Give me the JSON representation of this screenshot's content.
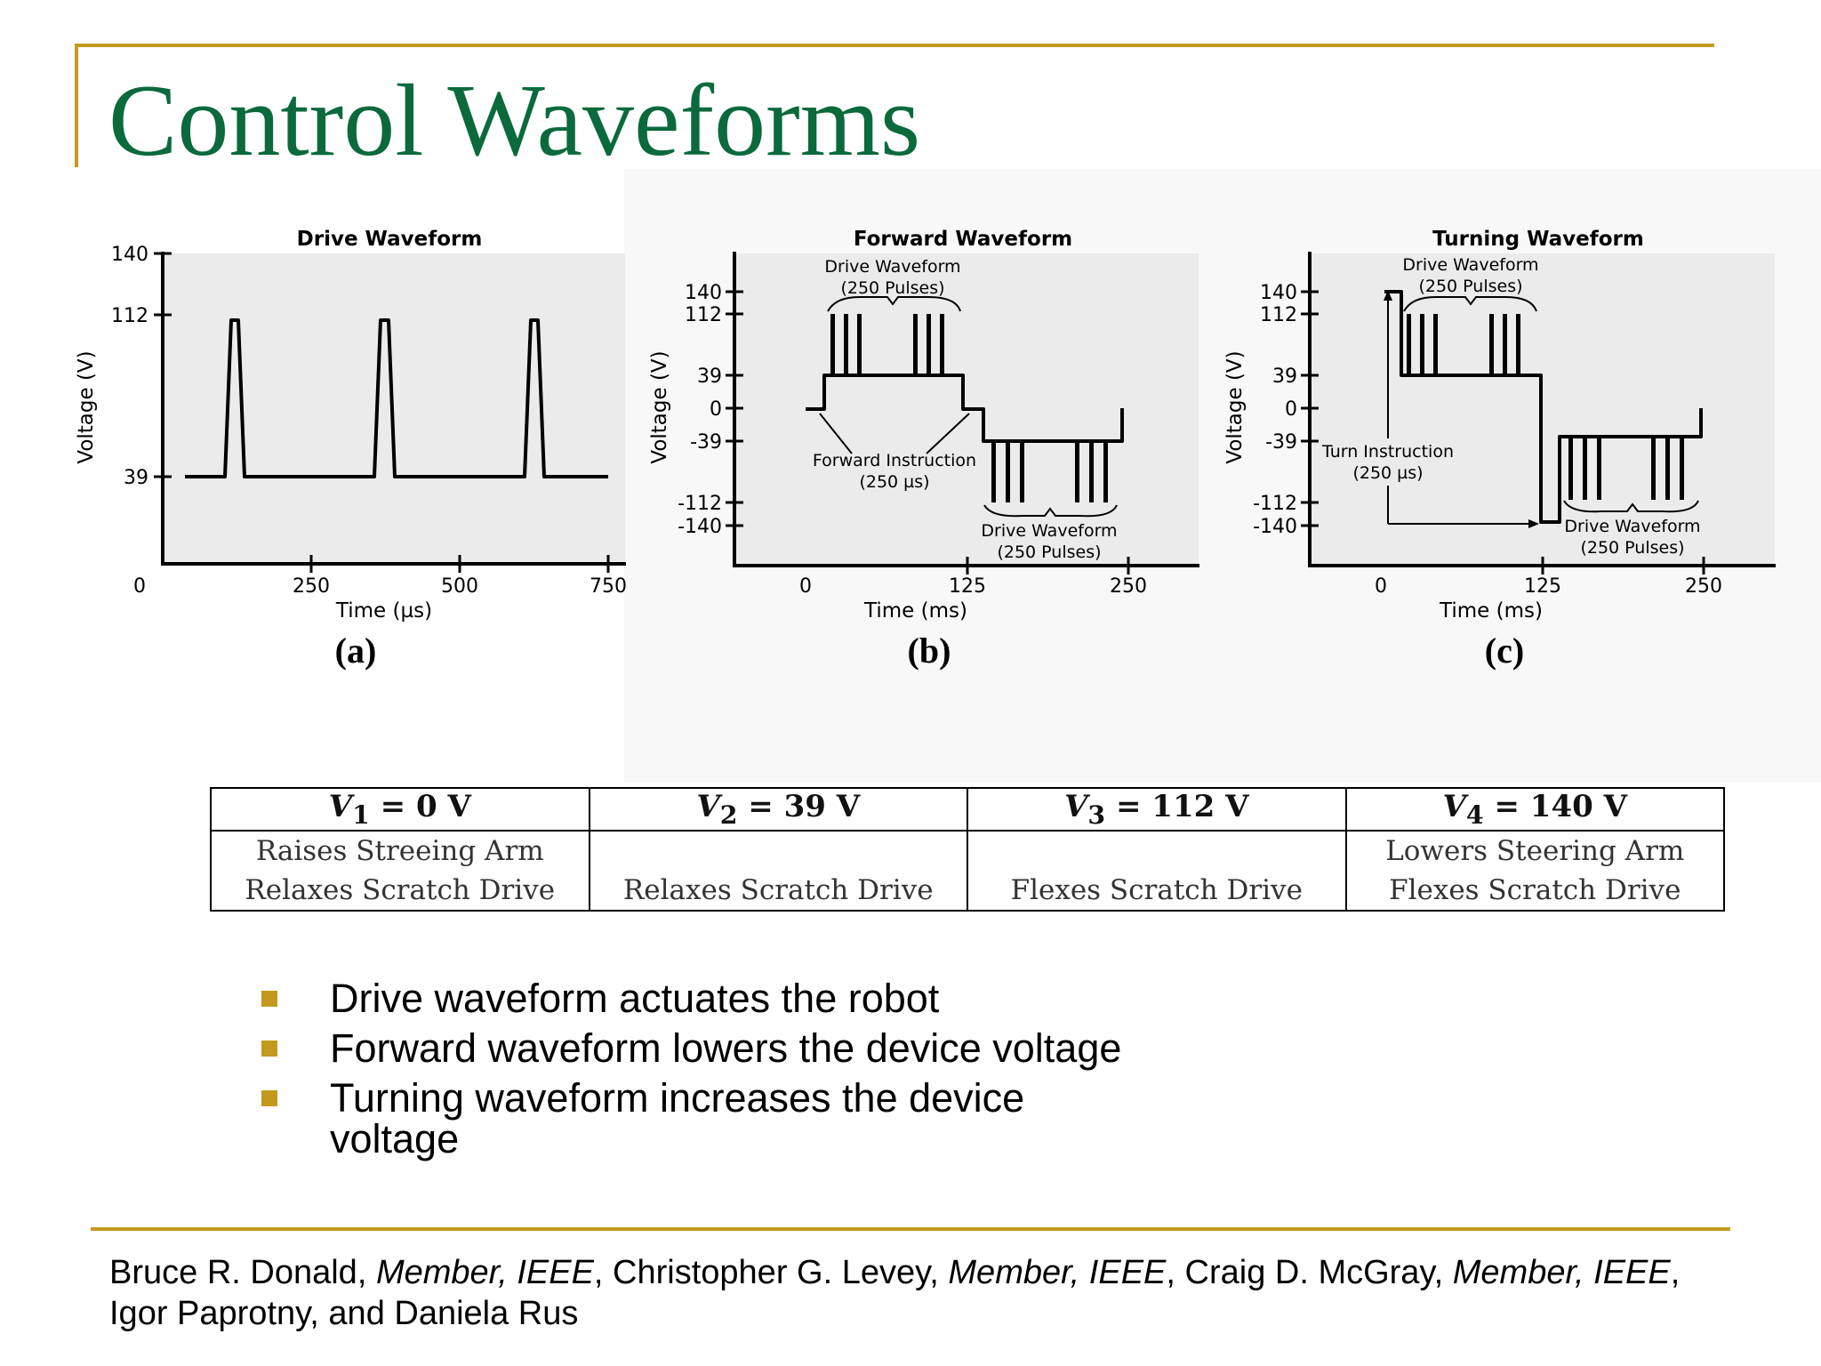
{
  "slide": {
    "title": "Control Waveforms"
  },
  "figure": {
    "panels": [
      {
        "title": "Drive Waveform",
        "ylabel": "Voltage (V)",
        "xlabel": "Time (µs)",
        "y_ticks": [
          "140",
          "112",
          "39"
        ],
        "x_ticks": [
          "0",
          "250",
          "500",
          "750"
        ],
        "caption": "(a)"
      },
      {
        "title": "Forward Waveform",
        "ylabel": "Voltage (V)",
        "xlabel": "Time (ms)",
        "y_ticks": [
          "140",
          "112",
          "39",
          "0",
          "-39",
          "-112",
          "-140"
        ],
        "x_ticks": [
          "0",
          "125",
          "250"
        ],
        "caption": "(b)",
        "annotations": {
          "drive_top_line1": "Drive Waveform",
          "drive_top_line2": "(250 Pulses)",
          "instruction_line1": "Forward Instruction",
          "instruction_line2": "(250 µs)",
          "drive_bottom_line1": "Drive Waveform",
          "drive_bottom_line2": "(250 Pulses)"
        }
      },
      {
        "title": "Turning Waveform",
        "ylabel": "Voltage (V)",
        "xlabel": "Time (ms)",
        "y_ticks": [
          "140",
          "112",
          "39",
          "0",
          "-39",
          "-112",
          "-140"
        ],
        "x_ticks": [
          "0",
          "125",
          "250"
        ],
        "caption": "(c)",
        "annotations": {
          "drive_top_line1": "Drive Waveform",
          "drive_top_line2": "(250 Pulses)",
          "instruction_line1": "Turn Instruction",
          "instruction_line2": "(250 µs)",
          "drive_bottom_line1": "Drive Waveform",
          "drive_bottom_line2": "(250 Pulses)"
        }
      }
    ]
  },
  "table": {
    "columns": [
      {
        "var": "V",
        "sub": "1",
        "rest": " = 0  V",
        "line1": "Raises Streeing Arm",
        "line2": "Relaxes Scratch Drive"
      },
      {
        "var": "V",
        "sub": "2",
        "rest": " = 39  V",
        "line1": "",
        "line2": "Relaxes Scratch Drive"
      },
      {
        "var": "V",
        "sub": "3",
        "rest": " = 112  V",
        "line1": "",
        "line2": "Flexes Scratch Drive"
      },
      {
        "var": "V",
        "sub": "4",
        "rest": " = 140  V",
        "line1": "Lowers Steering Arm",
        "line2": "Flexes Scratch Drive"
      }
    ]
  },
  "bullets": [
    "Drive waveform actuates the robot",
    "Forward waveform lowers the device voltage",
    "Turning waveform increases the device voltage"
  ],
  "citation": {
    "author1": "Bruce R. Donald",
    "affil1": "Member, IEEE",
    "author2": "Christopher G. Levey",
    "affil2": "Member, IEEE",
    "author3": "Craig D. McGray",
    "affil3": "Member, IEEE",
    "authors_rest": "Igor Paprotny, and Daniela Rus"
  },
  "colors": {
    "title": "#0b6a3c",
    "accent": "#c49a1e"
  }
}
